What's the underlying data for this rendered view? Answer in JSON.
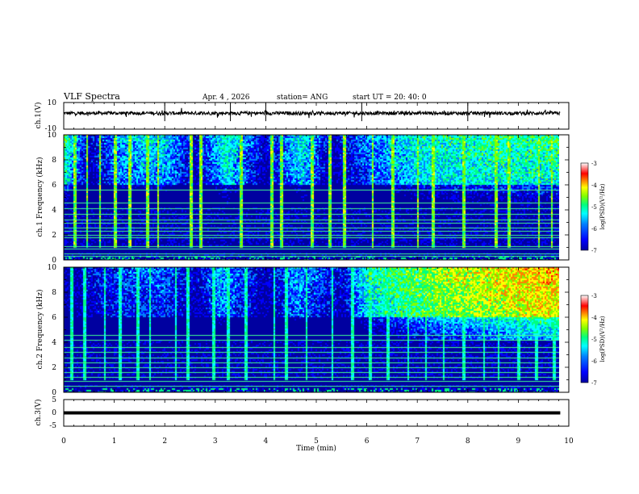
{
  "header": {
    "title": "VLF Spectra",
    "date": "Apr. 4 , 2026",
    "station": "station= ANG",
    "start_ut": "start  UT =   20: 40: 0"
  },
  "colors": {
    "spectrum": [
      "#0000a0",
      "#0000ff",
      "#0080ff",
      "#00ffff",
      "#00ff80",
      "#80ff00",
      "#ffff00",
      "#ff8000",
      "#ff0000",
      "#ffffff"
    ],
    "trace": "#000000"
  },
  "chart_data": [
    {
      "type": "line",
      "name": "ch1-waveform",
      "ylabel": "ch.1(V)",
      "ylim": [
        -10,
        10
      ],
      "y_ticks": [
        "10",
        "-10"
      ],
      "xlim": [
        0,
        10
      ],
      "data_end_min": 9.83,
      "baseline_v": 2,
      "spike_times_min": [
        2.0,
        3.3,
        4.0,
        5.9,
        8.0
      ]
    },
    {
      "type": "heatmap",
      "name": "ch1-spectrogram",
      "ylabel": "ch.1 Frequency (kHz)",
      "ylim": [
        0,
        10
      ],
      "y_ticks": [
        "0",
        "2",
        "4",
        "6",
        "8",
        "10"
      ],
      "xlim": [
        0,
        10
      ],
      "colorbar": {
        "label": "log(PSD)(V²/Hz)",
        "range": [
          -7,
          -3
        ],
        "ticks": [
          "-3",
          "-4",
          "-5",
          "-6",
          "-7"
        ]
      },
      "level_profile": [
        [
          0,
          -5.0
        ],
        [
          0.5,
          -6.6
        ],
        [
          1.2,
          -5.6
        ],
        [
          2.0,
          -5.5
        ],
        [
          2.6,
          -6.5
        ],
        [
          3.2,
          -5.2
        ],
        [
          4.0,
          -6.6
        ],
        [
          4.7,
          -5.3
        ],
        [
          5.3,
          -6.7
        ],
        [
          6.0,
          -5.9
        ],
        [
          7.0,
          -5.3
        ],
        [
          8.2,
          -5.1
        ],
        [
          10,
          -5.0
        ]
      ],
      "spectral_lines_khz": [
        0.3,
        0.5,
        0.9,
        1.1,
        1.8,
        2.0,
        2.3,
        2.6,
        3.0,
        3.2,
        3.7,
        4.1,
        4.6,
        5.6
      ],
      "impulse_times_min": [
        0.2,
        0.45,
        0.7,
        1.0,
        1.3,
        1.65,
        1.85,
        2.5,
        2.7,
        3.5,
        4.1,
        4.3,
        4.9,
        5.25,
        5.55,
        6.1,
        6.5,
        7.0,
        7.3,
        7.9,
        8.55,
        8.8,
        9.4,
        9.65
      ]
    },
    {
      "type": "heatmap",
      "name": "ch2-spectrogram",
      "ylabel": "ch.2 Frequency (kHz)",
      "ylim": [
        0,
        10
      ],
      "y_ticks": [
        "0",
        "2",
        "4",
        "6",
        "8",
        "10"
      ],
      "xlim": [
        0,
        10
      ],
      "colorbar": {
        "label": "log(PSD)(V²/Hz)",
        "range": [
          -7,
          -3
        ],
        "ticks": [
          "-3",
          "-4",
          "-5",
          "-6",
          "-7"
        ]
      },
      "level_profile": [
        [
          0,
          -6.8
        ],
        [
          0.6,
          -6.4
        ],
        [
          1.2,
          -6.1
        ],
        [
          2.0,
          -6.0
        ],
        [
          2.6,
          -6.6
        ],
        [
          3.1,
          -5.6
        ],
        [
          4.0,
          -6.7
        ],
        [
          4.6,
          -5.7
        ],
        [
          5.5,
          -6.5
        ],
        [
          6.0,
          -5.2
        ],
        [
          6.8,
          -4.8
        ],
        [
          7.5,
          -4.4
        ],
        [
          8.0,
          -4.3
        ],
        [
          9.0,
          -4.0
        ],
        [
          10,
          -3.8
        ]
      ],
      "spectral_lines_khz": [
        0.5,
        0.9,
        1.2,
        1.6,
        2.0,
        2.4,
        2.8,
        3.2,
        3.6,
        4.2,
        4.6
      ],
      "impulse_times_min": [
        0.15,
        0.4,
        0.8,
        1.1,
        1.45,
        1.7,
        2.2,
        2.45,
        2.95,
        3.25,
        3.6,
        4.15,
        4.4,
        4.8,
        5.3,
        5.7,
        6.05,
        6.4,
        6.8,
        7.15,
        7.5,
        7.9,
        8.3,
        8.6,
        9.0,
        9.35,
        9.7
      ]
    },
    {
      "type": "line",
      "name": "ch3-waveform",
      "ylabel": "ch.3(V)",
      "ylim": [
        -5,
        5
      ],
      "y_ticks": [
        "5",
        "0",
        "-5"
      ],
      "xlim": [
        0,
        10
      ],
      "data_end_min": 9.83,
      "baseline_v": 0
    }
  ],
  "xaxis": {
    "label": "Time  (min)",
    "ticks": [
      "0",
      "1",
      "2",
      "3",
      "4",
      "5",
      "6",
      "7",
      "8",
      "9",
      "10"
    ]
  }
}
